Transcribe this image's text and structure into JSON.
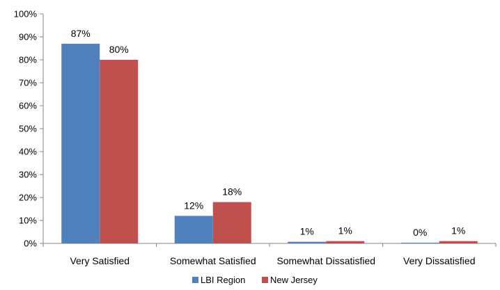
{
  "chart_data": {
    "type": "bar",
    "categories": [
      "Very Satisfied",
      "Somewhat Satisfied",
      "Somewhat Dissatisfied",
      "Very Dissatisfied"
    ],
    "series": [
      {
        "name": "LBI Region",
        "values": [
          87,
          12,
          1,
          0
        ],
        "labels": [
          "87%",
          "12%",
          "1%",
          "0%"
        ],
        "color": "#4f81bd"
      },
      {
        "name": "New Jersey",
        "values": [
          80,
          18,
          1,
          1
        ],
        "labels": [
          "80%",
          "18%",
          "1%",
          "1%"
        ],
        "color": "#c0504d"
      }
    ],
    "bar_values_actual": [
      [
        87,
        12,
        0.7,
        0.3
      ],
      [
        80,
        18,
        1,
        1
      ]
    ],
    "ylim": [
      0,
      100
    ],
    "yticks": [
      0,
      10,
      20,
      30,
      40,
      50,
      60,
      70,
      80,
      90,
      100
    ],
    "ytick_labels": [
      "0%",
      "10%",
      "20%",
      "30%",
      "40%",
      "50%",
      "60%",
      "70%",
      "80%",
      "90%",
      "100%"
    ],
    "title": "",
    "xlabel": "",
    "ylabel": "",
    "grid": false,
    "legend": "bottom-center"
  }
}
